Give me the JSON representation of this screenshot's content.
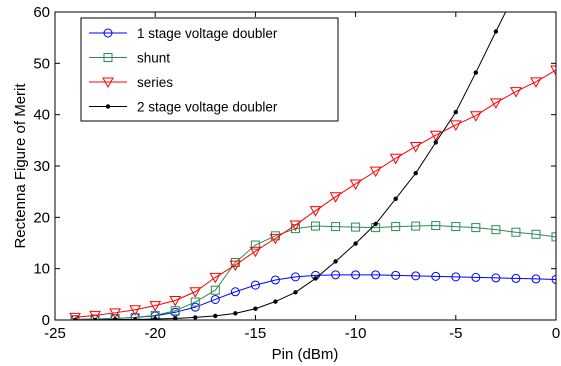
{
  "chart_data": {
    "type": "line",
    "title": "",
    "xlabel": "Pin (dBm)",
    "ylabel": "Rectenna Figure of Merit",
    "xlim": [
      -25,
      0
    ],
    "ylim": [
      0,
      60
    ],
    "xticks": [
      -25,
      -20,
      -15,
      -10,
      -5,
      0
    ],
    "yticks": [
      0,
      10,
      20,
      30,
      40,
      50,
      60
    ],
    "grid": false,
    "legend_position": "top-left",
    "series": [
      {
        "name": "1 stage voltage doubler",
        "color": "#0000ff",
        "marker": "circle",
        "x": [
          -24,
          -23,
          -22,
          -21,
          -20,
          -19,
          -18,
          -17,
          -16,
          -15,
          -14,
          -13,
          -12,
          -11,
          -10,
          -9,
          -8,
          -7,
          -6,
          -5,
          -4,
          -3,
          -2,
          -1,
          0
        ],
        "y": [
          0.1,
          0.2,
          0.3,
          0.5,
          0.8,
          1.5,
          2.5,
          4.0,
          5.5,
          6.8,
          7.8,
          8.4,
          8.7,
          8.8,
          8.8,
          8.8,
          8.7,
          8.6,
          8.5,
          8.4,
          8.3,
          8.2,
          8.1,
          8.0,
          7.9
        ]
      },
      {
        "name": "shunt",
        "color": "#2e8b57",
        "marker": "square",
        "x": [
          -24,
          -23,
          -22,
          -21,
          -20,
          -19,
          -18,
          -17,
          -16,
          -15,
          -14,
          -13,
          -12,
          -11,
          -10,
          -9,
          -8,
          -7,
          -6,
          -5,
          -4,
          -3,
          -2,
          -1,
          0
        ],
        "y": [
          0.1,
          0.2,
          0.3,
          0.5,
          0.9,
          1.8,
          3.5,
          5.8,
          11.2,
          14.6,
          16.4,
          17.8,
          18.3,
          18.2,
          18.1,
          18.0,
          18.2,
          18.3,
          18.4,
          18.2,
          18.0,
          17.6,
          17.1,
          16.7,
          16.2
        ]
      },
      {
        "name": "series",
        "color": "#ff0000",
        "marker": "triangle-down",
        "x": [
          -24,
          -23,
          -22,
          -21,
          -20,
          -19,
          -18,
          -17,
          -16,
          -15,
          -14,
          -13,
          -12,
          -11,
          -10,
          -9,
          -8,
          -7,
          -6,
          -5,
          -4,
          -3,
          -2,
          -1,
          0
        ],
        "y": [
          0.5,
          0.9,
          1.4,
          2.0,
          2.8,
          3.8,
          5.5,
          8.3,
          10.7,
          13.4,
          15.9,
          18.5,
          21.3,
          24.0,
          26.5,
          29.0,
          31.5,
          33.8,
          36.0,
          38.0,
          39.8,
          42.3,
          44.5,
          46.4,
          48.7
        ]
      },
      {
        "name": "2 stage voltage doubler",
        "color": "#000000",
        "marker": "dot",
        "x": [
          -24,
          -23,
          -22,
          -21,
          -20,
          -19,
          -18,
          -17,
          -16,
          -15,
          -14,
          -13,
          -12,
          -11,
          -10,
          -9,
          -8,
          -7,
          -6,
          -5,
          -4,
          -3,
          -2
        ],
        "y": [
          0.0,
          0.0,
          0.1,
          0.1,
          0.2,
          0.3,
          0.5,
          0.8,
          1.3,
          2.2,
          3.6,
          5.4,
          8.1,
          11.4,
          14.9,
          18.7,
          23.6,
          28.6,
          34.6,
          40.5,
          48.2,
          56.2,
          64.0
        ]
      }
    ]
  }
}
